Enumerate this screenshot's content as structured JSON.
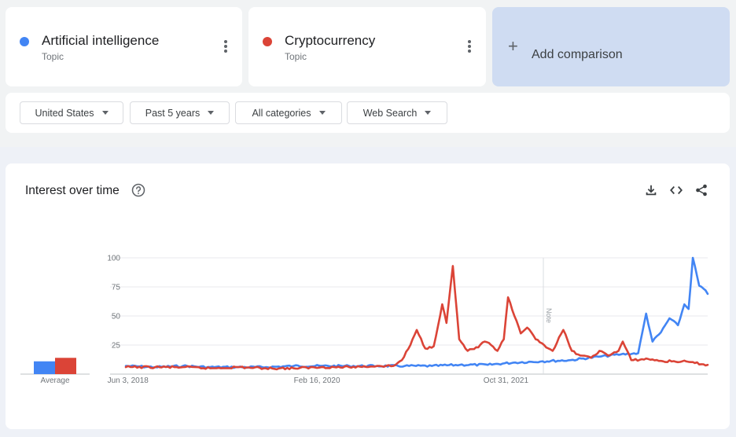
{
  "terms": [
    {
      "name": "Artificial intelligence",
      "type": "Topic",
      "color": "#4285f4"
    },
    {
      "name": "Cryptocurrency",
      "type": "Topic",
      "color": "#db4437"
    }
  ],
  "add_comparison": {
    "label": "Add comparison",
    "icon": "plus-icon"
  },
  "filters": [
    {
      "label": "United States"
    },
    {
      "label": "Past 5 years"
    },
    {
      "label": "All categories"
    },
    {
      "label": "Web Search"
    }
  ],
  "chart_header": {
    "title": "Interest over time",
    "icons": [
      "help-icon",
      "download-icon",
      "embed-icon",
      "share-icon"
    ]
  },
  "chart_data": {
    "type": "line",
    "title": "Interest over time",
    "ylim": [
      0,
      100
    ],
    "yticks": [
      "100",
      "75",
      "50",
      "25"
    ],
    "xticks": [
      "Jun 3, 2018",
      "Feb 16, 2020",
      "Oct 31, 2021"
    ],
    "annotation": "Note",
    "grid": true,
    "series": [
      {
        "name": "Artificial intelligence",
        "color": "#4285f4",
        "average": 11,
        "points": [
          [
            "2018-05-27",
            7
          ],
          [
            "2018-09-01",
            6
          ],
          [
            "2018-12-01",
            7
          ],
          [
            "2019-03-01",
            6
          ],
          [
            "2019-06-01",
            6
          ],
          [
            "2019-09-01",
            6
          ],
          [
            "2019-12-01",
            7
          ],
          [
            "2020-03-01",
            7
          ],
          [
            "2020-06-01",
            7
          ],
          [
            "2020-09-01",
            7
          ],
          [
            "2020-12-01",
            7
          ],
          [
            "2021-03-01",
            7
          ],
          [
            "2021-06-01",
            8
          ],
          [
            "2021-09-01",
            8
          ],
          [
            "2021-12-01",
            10
          ],
          [
            "2022-03-01",
            11
          ],
          [
            "2022-06-01",
            12
          ],
          [
            "2022-09-01",
            15
          ],
          [
            "2022-11-15",
            17
          ],
          [
            "2023-01-10",
            18
          ],
          [
            "2023-02-05",
            52
          ],
          [
            "2023-02-26",
            28
          ],
          [
            "2023-03-26",
            36
          ],
          [
            "2023-04-23",
            48
          ],
          [
            "2023-05-21",
            42
          ],
          [
            "2023-06-11",
            60
          ],
          [
            "2023-06-25",
            56
          ],
          [
            "2023-07-09",
            100
          ],
          [
            "2023-07-30",
            76
          ],
          [
            "2023-08-20",
            72
          ],
          [
            "2023-08-27",
            69
          ]
        ]
      },
      {
        "name": "Cryptocurrency",
        "color": "#db4437",
        "average": 14,
        "points": [
          [
            "2018-05-27",
            6
          ],
          [
            "2018-09-01",
            6
          ],
          [
            "2018-12-01",
            6
          ],
          [
            "2019-03-01",
            5
          ],
          [
            "2019-06-01",
            6
          ],
          [
            "2019-09-01",
            5
          ],
          [
            "2019-12-01",
            5
          ],
          [
            "2020-03-01",
            6
          ],
          [
            "2020-06-01",
            6
          ],
          [
            "2020-09-01",
            7
          ],
          [
            "2020-10-25",
            7
          ],
          [
            "2020-11-22",
            12
          ],
          [
            "2020-12-20",
            25
          ],
          [
            "2021-01-10",
            38
          ],
          [
            "2021-02-07",
            22
          ],
          [
            "2021-03-07",
            24
          ],
          [
            "2021-04-04",
            60
          ],
          [
            "2021-04-18",
            44
          ],
          [
            "2021-05-09",
            93
          ],
          [
            "2021-05-30",
            30
          ],
          [
            "2021-06-27",
            20
          ],
          [
            "2021-08-01",
            23
          ],
          [
            "2021-08-22",
            28
          ],
          [
            "2021-09-12",
            25
          ],
          [
            "2021-10-03",
            20
          ],
          [
            "2021-10-24",
            30
          ],
          [
            "2021-11-07",
            66
          ],
          [
            "2021-11-28",
            50
          ],
          [
            "2021-12-19",
            35
          ],
          [
            "2022-01-09",
            40
          ],
          [
            "2022-02-06",
            30
          ],
          [
            "2022-03-06",
            25
          ],
          [
            "2022-04-03",
            20
          ],
          [
            "2022-05-08",
            38
          ],
          [
            "2022-06-05",
            20
          ],
          [
            "2022-07-03",
            16
          ],
          [
            "2022-08-07",
            14
          ],
          [
            "2022-09-04",
            20
          ],
          [
            "2022-10-02",
            16
          ],
          [
            "2022-11-06",
            20
          ],
          [
            "2022-11-20",
            28
          ],
          [
            "2022-12-18",
            12
          ],
          [
            "2023-02-12",
            13
          ],
          [
            "2023-04-02",
            11
          ],
          [
            "2023-06-04",
            11
          ],
          [
            "2023-08-27",
            8
          ]
        ]
      }
    ]
  }
}
